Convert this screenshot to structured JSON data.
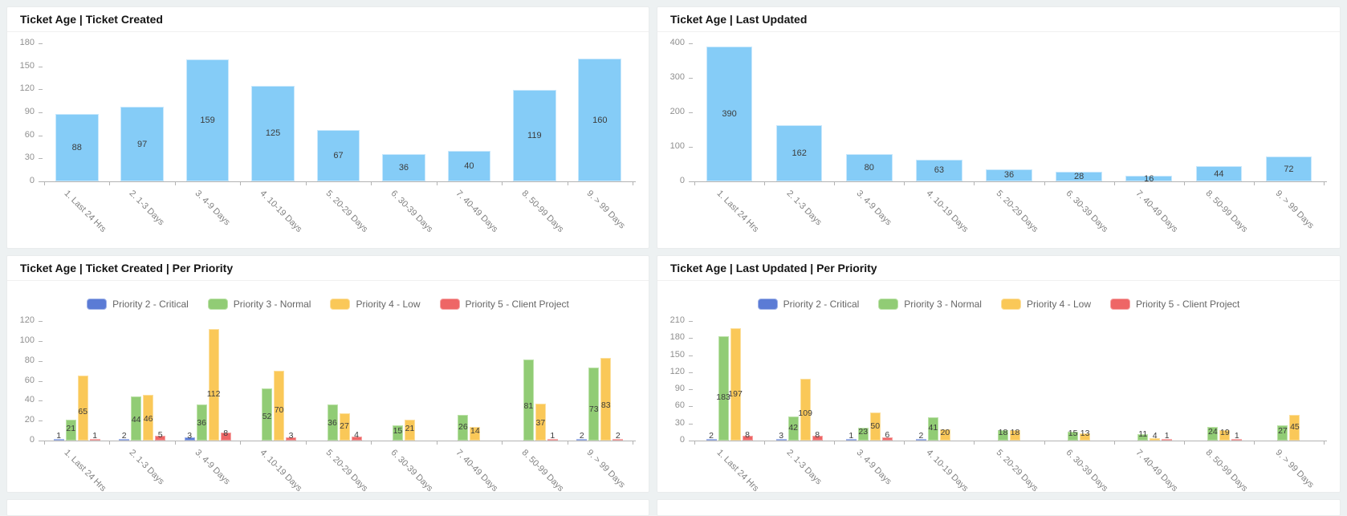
{
  "page": {
    "background": "#edf1f2",
    "card_background": "#ffffff"
  },
  "categories": [
    "1. Last 24 Hrs",
    "2. 1-3 Days",
    "3. 4-9 Days",
    "4. 10-19 Days",
    "5. 20-29 Days",
    "6. 30-39 Days",
    "7. 40-49 Days",
    "8. 50-99 Days",
    "9. > 99 Days"
  ],
  "chart_data": [
    {
      "type": "bar",
      "title": "Ticket Age | Ticket Created",
      "categories": [
        "1. Last 24 Hrs",
        "2. 1-3 Days",
        "3. 4-9 Days",
        "4. 10-19 Days",
        "5. 20-29 Days",
        "6. 30-39 Days",
        "7. 40-49 Days",
        "8. 50-99 Days",
        "9. > 99 Days"
      ],
      "values": [
        88,
        97,
        159,
        125,
        67,
        36,
        40,
        119,
        160
      ],
      "ylim": [
        0,
        180
      ],
      "ytick_step": 30,
      "gridlines": false,
      "legend": null,
      "label_position": "inside-center",
      "bar_color": "#85ccf7",
      "bar_border": "#c9e8fc"
    },
    {
      "type": "bar",
      "title": "Ticket Age | Last Updated",
      "categories": [
        "1. Last 24 Hrs",
        "2. 1-3 Days",
        "3. 4-9 Days",
        "4. 10-19 Days",
        "5. 20-29 Days",
        "6. 30-39 Days",
        "7. 40-49 Days",
        "8. 50-99 Days",
        "9. > 99 Days"
      ],
      "values": [
        390,
        162,
        80,
        63,
        36,
        28,
        16,
        44,
        72
      ],
      "ylim": [
        0,
        400
      ],
      "ytick_step": 100,
      "gridlines": false,
      "legend": null,
      "label_position": "inside-center",
      "bar_color": "#85ccf7",
      "bar_border": "#c9e8fc"
    },
    {
      "type": "bar",
      "title": "Ticket Age | Ticket Created | Per Priority",
      "categories": [
        "1. Last 24 Hrs",
        "2. 1-3 Days",
        "3. 4-9 Days",
        "4. 10-19 Days",
        "5. 20-29 Days",
        "6. 30-39 Days",
        "7. 40-49 Days",
        "8. 50-99 Days",
        "9. > 99 Days"
      ],
      "ylim": [
        0,
        120
      ],
      "ytick_step": 20,
      "gridlines": false,
      "legend_position": "top",
      "label_position": "inside-bottom",
      "series": [
        {
          "name": "Priority 2 - Critical",
          "color": "#5b7bd5",
          "border": "#9fb2e8",
          "values": [
            1,
            2,
            3,
            0,
            0,
            0,
            0,
            0,
            2
          ]
        },
        {
          "name": "Priority 3 - Normal",
          "color": "#91cc75",
          "border": "#bce2a9",
          "values": [
            21,
            44,
            36,
            52,
            36,
            15,
            26,
            81,
            73
          ]
        },
        {
          "name": "Priority 4 - Low",
          "color": "#fac858",
          "border": "#fcdf9d",
          "values": [
            65,
            46,
            112,
            70,
            27,
            21,
            14,
            37,
            83
          ]
        },
        {
          "name": "Priority 5 - Client Project",
          "color": "#ee6666",
          "border": "#f5a6a6",
          "values": [
            1,
            5,
            8,
            3,
            4,
            0,
            0,
            1,
            2
          ]
        }
      ]
    },
    {
      "type": "bar",
      "title": "Ticket Age | Last Updated | Per Priority",
      "categories": [
        "1. Last 24 Hrs",
        "2. 1-3 Days",
        "3. 4-9 Days",
        "4. 10-19 Days",
        "5. 20-29 Days",
        "6. 30-39 Days",
        "7. 40-49 Days",
        "8. 50-99 Days",
        "9. > 99 Days"
      ],
      "ylim": [
        0,
        210
      ],
      "ytick_step": 30,
      "gridlines": false,
      "legend_position": "top",
      "label_position": "inside-bottom",
      "series": [
        {
          "name": "Priority 2 - Critical",
          "color": "#5b7bd5",
          "border": "#9fb2e8",
          "values": [
            2,
            3,
            1,
            2,
            0,
            0,
            0,
            0,
            0
          ]
        },
        {
          "name": "Priority 3 - Normal",
          "color": "#91cc75",
          "border": "#bce2a9",
          "values": [
            183,
            42,
            23,
            41,
            18,
            15,
            11,
            24,
            27
          ]
        },
        {
          "name": "Priority 4 - Low",
          "color": "#fac858",
          "border": "#fcdf9d",
          "values": [
            197,
            109,
            50,
            20,
            18,
            13,
            4,
            19,
            45
          ]
        },
        {
          "name": "Priority 5 - Client Project",
          "color": "#ee6666",
          "border": "#f5a6a6",
          "values": [
            8,
            8,
            6,
            0,
            0,
            0,
            1,
            1,
            0
          ]
        }
      ]
    }
  ]
}
